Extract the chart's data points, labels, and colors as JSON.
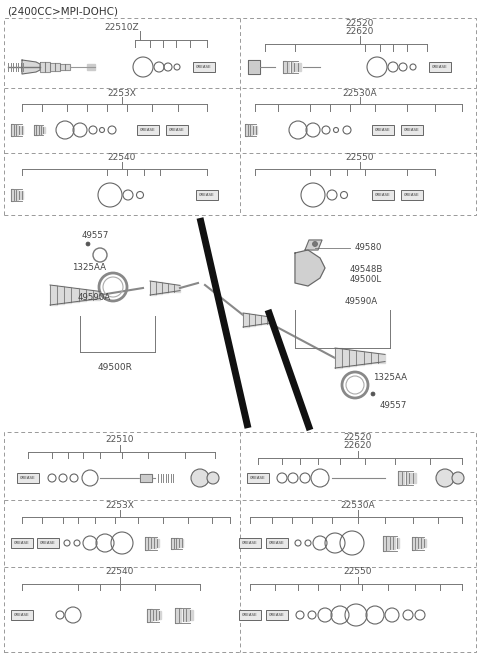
{
  "title": "(2400CC>MPI-DOHC)",
  "bg_color": "#ffffff",
  "top_left_labels": [
    "22510Z",
    "2253X",
    "22540"
  ],
  "top_right_labels": [
    "22520\n22620",
    "22530A",
    "22550"
  ],
  "bottom_left_labels": [
    "22510",
    "2253X",
    "22540"
  ],
  "bottom_right_labels": [
    "22520\n22620",
    "22530A",
    "22550"
  ],
  "center_left_labels": [
    "49557",
    "1325AA",
    "49590A",
    "49500R"
  ],
  "center_right_labels": [
    "49580",
    "49548B",
    "49500L",
    "49590A",
    "1325AA",
    "49557"
  ],
  "dash_color": "#999999",
  "line_color": "#777777",
  "part_color": "#666666",
  "text_color": "#555555",
  "grease_color": "#cccccc"
}
